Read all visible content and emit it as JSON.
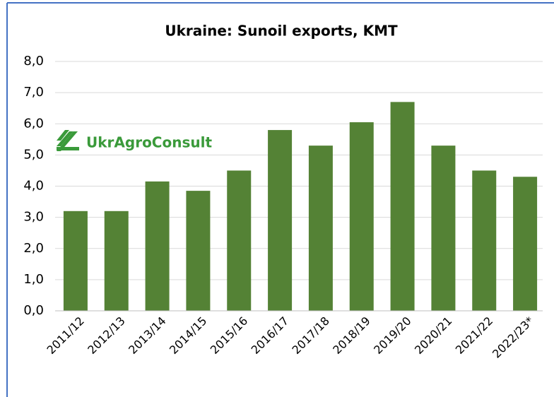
{
  "chart_data": {
    "type": "bar",
    "title": "Ukraine: Sunoil exports, KMT",
    "watermark": "UkrAgroConsult",
    "categories": [
      "2011/12",
      "2012/13",
      "2013/14",
      "2014/15",
      "2015/16",
      "2016/17",
      "2017/18",
      "2018/19",
      "2019/20",
      "2020/21",
      "2021/22",
      "2022/23*"
    ],
    "values": [
      3.2,
      3.2,
      4.15,
      3.85,
      4.5,
      5.8,
      5.3,
      6.05,
      6.7,
      5.3,
      4.5,
      4.3
    ],
    "color": "#548235",
    "ylim": [
      0,
      8
    ],
    "yticks": [
      {
        "value": 0,
        "label": "0,0"
      },
      {
        "value": 1,
        "label": "1,0"
      },
      {
        "value": 2,
        "label": "2,0"
      },
      {
        "value": 3,
        "label": "3,0"
      },
      {
        "value": 4,
        "label": "4,0"
      },
      {
        "value": 5,
        "label": "5,0"
      },
      {
        "value": 6,
        "label": "6,0"
      },
      {
        "value": 7,
        "label": "7,0"
      },
      {
        "value": 8,
        "label": "8,0"
      }
    ],
    "grid": true
  }
}
